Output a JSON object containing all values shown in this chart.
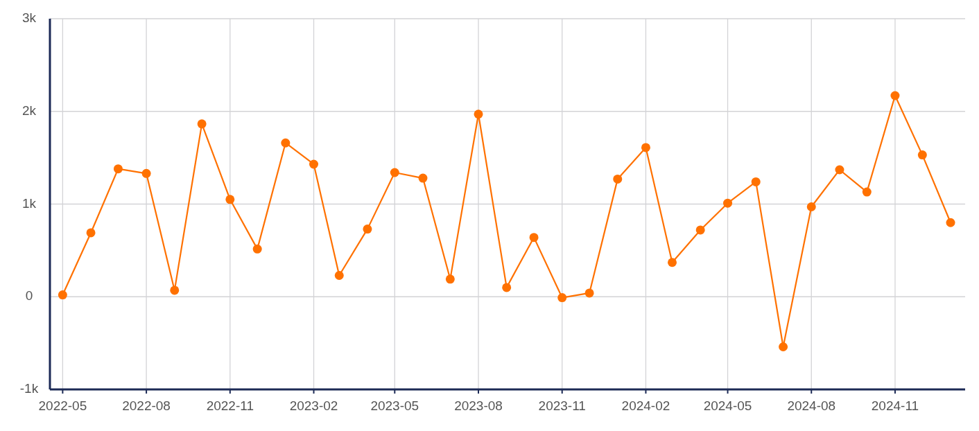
{
  "chart_data": {
    "type": "line",
    "x": [
      "2022-05",
      "2022-06",
      "2022-07",
      "2022-08",
      "2022-09",
      "2022-10",
      "2022-11",
      "2022-12",
      "2023-01",
      "2023-02",
      "2023-03",
      "2023-04",
      "2023-05",
      "2023-06",
      "2023-07",
      "2023-08",
      "2023-09",
      "2023-10",
      "2023-11",
      "2023-12",
      "2024-01",
      "2024-02",
      "2024-03",
      "2024-04",
      "2024-05",
      "2024-06",
      "2024-07",
      "2024-08",
      "2024-09",
      "2024-10",
      "2024-11",
      "2024-12",
      "2025-01"
    ],
    "series": [
      {
        "color": "#ff7100",
        "values": [
          20,
          690,
          1380,
          1330,
          70,
          1865,
          1050,
          515,
          1660,
          1430,
          230,
          730,
          1340,
          1280,
          190,
          1970,
          100,
          640,
          -10,
          40,
          1270,
          1610,
          370,
          720,
          1010,
          1240,
          -540,
          970,
          1370,
          1130,
          2170,
          1530,
          800
        ]
      }
    ],
    "xlim": [
      "2022-04-17",
      "2025-01-17"
    ],
    "xticks": [
      "2022-05",
      "2022-08",
      "2022-11",
      "2023-02",
      "2023-05",
      "2023-08",
      "2023-11",
      "2024-02",
      "2024-05",
      "2024-08",
      "2024-11"
    ],
    "ylim": [
      -1000,
      3000
    ],
    "yticks": [
      {
        "value": -1000,
        "label": "-1k"
      },
      {
        "value": 0,
        "label": "0"
      },
      {
        "value": 1000,
        "label": "1k"
      },
      {
        "value": 2000,
        "label": "2k"
      },
      {
        "value": 3000,
        "label": "3k"
      }
    ],
    "grid": true,
    "marker": "circle",
    "line_style": "solid"
  }
}
